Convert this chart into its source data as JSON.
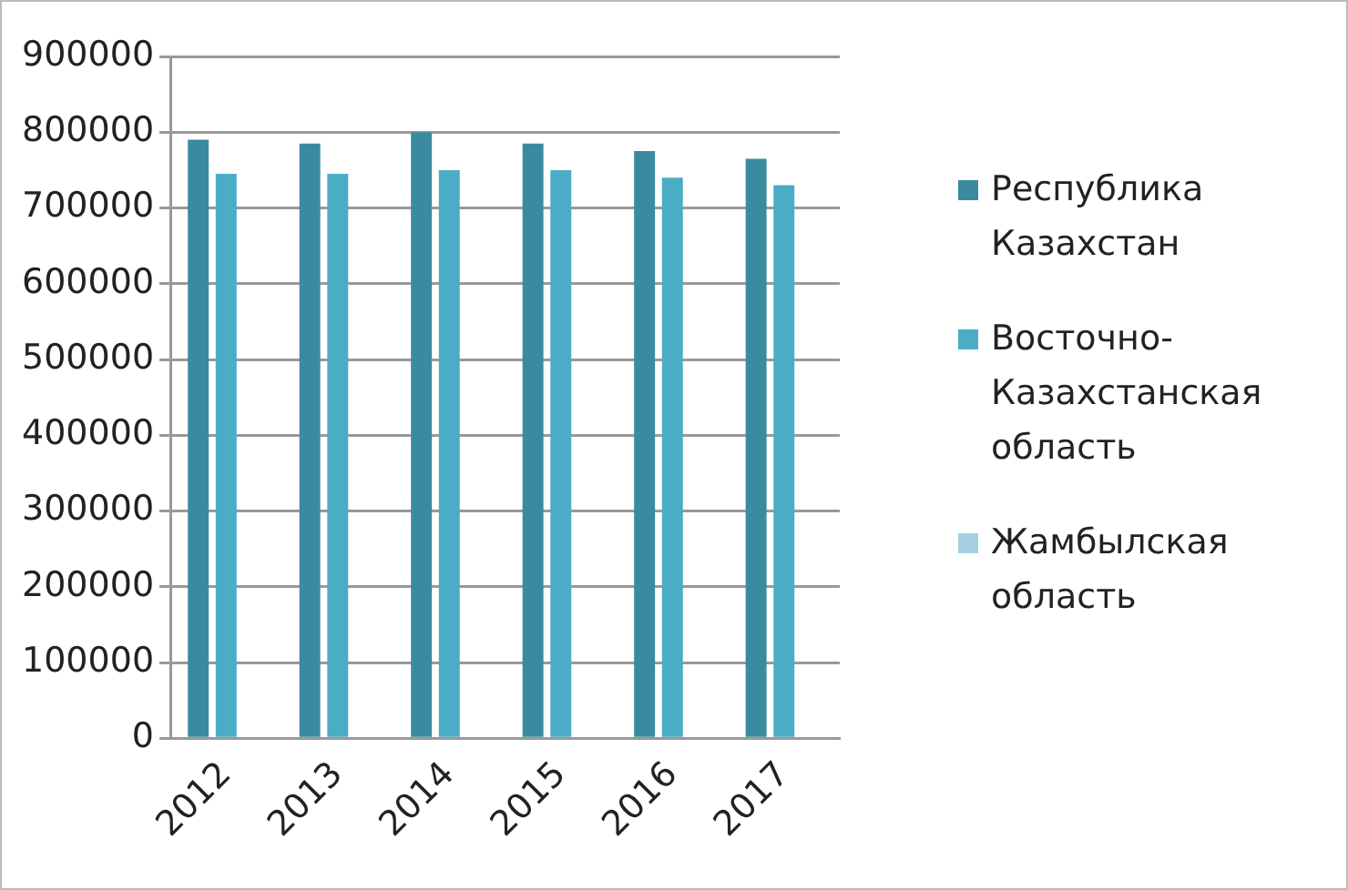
{
  "chart_data": {
    "type": "bar",
    "categories": [
      "2012",
      "2013",
      "2014",
      "2015",
      "2016",
      "2017"
    ],
    "series": [
      {
        "name": "Республика Казахстан",
        "color": "#3a8ba0",
        "values": [
          790000,
          785000,
          800000,
          785000,
          775000,
          765000
        ]
      },
      {
        "name": "Восточно-Казахстанская область",
        "color": "#4bacc6",
        "values": [
          745000,
          745000,
          750000,
          750000,
          740000,
          730000
        ]
      },
      {
        "name": "Жамбылская область",
        "color": "#a5cfe0",
        "values": [
          null,
          null,
          null,
          null,
          null,
          null
        ]
      }
    ],
    "ylim": [
      0,
      900000
    ],
    "yticks": [
      0,
      100000,
      200000,
      300000,
      400000,
      500000,
      600000,
      700000,
      800000,
      900000
    ],
    "grid": "y",
    "legend": "right"
  }
}
